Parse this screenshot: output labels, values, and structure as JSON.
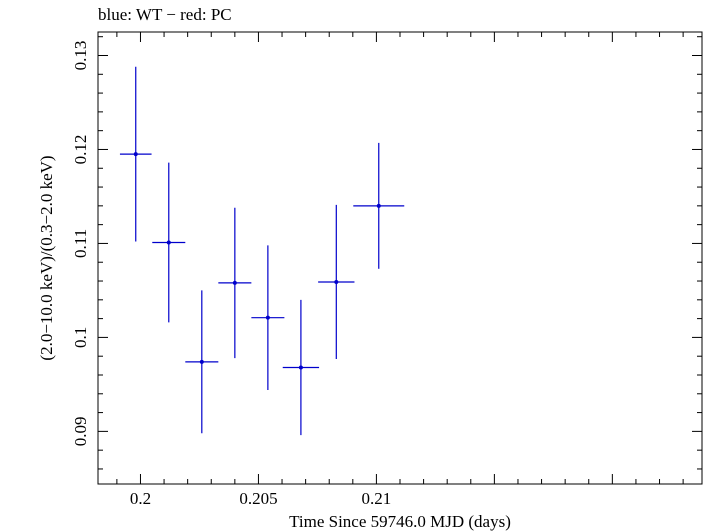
{
  "chart_data": {
    "type": "scatter",
    "title": "blue: WT − red: PC",
    "xlabel": "Time Since 59746.0 MJD (days)",
    "ylabel": "(2.0−10.0 keV)/(0.3−2.0 keV)",
    "xlim": [
      0.1982,
      0.2238
    ],
    "ylim": [
      0.0844,
      0.1325
    ],
    "xticks": [
      {
        "value": 0.2,
        "label": "0.2"
      },
      {
        "value": 0.205,
        "label": "0.205"
      },
      {
        "value": 0.21,
        "label": "0.21"
      }
    ],
    "yticks": [
      {
        "value": 0.09,
        "label": "0.09"
      },
      {
        "value": 0.1,
        "label": "0.1"
      },
      {
        "value": 0.11,
        "label": "0.11"
      },
      {
        "value": 0.12,
        "label": "0.12"
      },
      {
        "value": 0.13,
        "label": "0.13"
      }
    ],
    "grid": false,
    "series": [
      {
        "color": "#0000cc",
        "points": [
          {
            "x": 0.1998,
            "y": 0.1195,
            "xerr": 0.00067,
            "yerr": 0.0093
          },
          {
            "x": 0.2012,
            "y": 0.1101,
            "xerr": 0.0007,
            "yerr": 0.0085
          },
          {
            "x": 0.2026,
            "y": 0.0974,
            "xerr": 0.0007,
            "yerr": 0.0076
          },
          {
            "x": 0.204,
            "y": 0.1058,
            "xerr": 0.0007,
            "yerr": 0.008
          },
          {
            "x": 0.2054,
            "y": 0.1021,
            "xerr": 0.0007,
            "yerr": 0.0077
          },
          {
            "x": 0.2068,
            "y": 0.0968,
            "xerr": 0.00077,
            "yerr": 0.0072
          },
          {
            "x": 0.2083,
            "y": 0.1059,
            "xerr": 0.00077,
            "yerr": 0.0082
          },
          {
            "x": 0.2101,
            "y": 0.114,
            "xerr": 0.00108,
            "yerr": 0.0067
          }
        ]
      }
    ]
  }
}
